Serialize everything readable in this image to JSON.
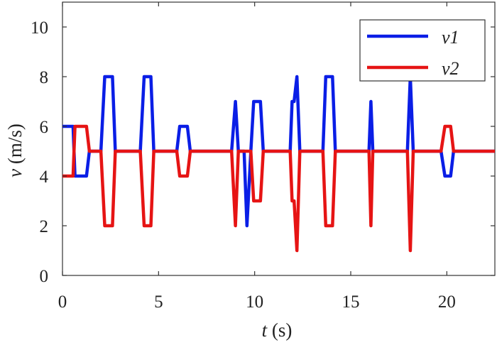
{
  "chart_data": {
    "type": "line",
    "xlabel": {
      "var": "t",
      "unit": " (s)"
    },
    "ylabel": {
      "var": "v",
      "unit": " (m/s)"
    },
    "xlim": [
      0,
      22.5
    ],
    "ylim": [
      0,
      11
    ],
    "xticks": [
      0,
      5,
      10,
      15,
      20
    ],
    "yticks": [
      0,
      2,
      4,
      6,
      8,
      10
    ],
    "grid": false,
    "legend_position": "top-right",
    "series": [
      {
        "name": "v1",
        "color": "#0a1ee6",
        "x": [
          0,
          0.55,
          0.65,
          1.25,
          1.4,
          2.0,
          2.2,
          2.6,
          2.75,
          4.05,
          4.25,
          4.6,
          4.75,
          5.95,
          6.1,
          6.5,
          6.65,
          8.8,
          9.0,
          9.15,
          9.45,
          9.6,
          9.8,
          9.95,
          10.3,
          10.45,
          11.85,
          11.95,
          12.05,
          12.2,
          12.35,
          13.55,
          13.7,
          14.05,
          14.2,
          15.95,
          16.05,
          16.15,
          17.95,
          18.1,
          18.25,
          19.7,
          19.9,
          20.2,
          20.35,
          22.5
        ],
        "y": [
          6,
          6,
          4,
          4,
          5,
          5,
          8,
          8,
          5,
          5,
          8,
          8,
          5,
          5,
          6,
          6,
          5,
          5,
          7,
          5,
          5,
          2,
          5,
          7,
          7,
          5,
          5,
          7,
          7,
          8,
          5,
          5,
          8,
          8,
          5,
          5,
          7,
          5,
          5,
          8,
          5,
          5,
          4,
          4,
          5,
          5
        ]
      },
      {
        "name": "v2",
        "color": "#e61414",
        "x": [
          0,
          0.55,
          0.65,
          1.25,
          1.4,
          2.0,
          2.2,
          2.6,
          2.75,
          4.05,
          4.25,
          4.6,
          4.75,
          5.95,
          6.1,
          6.5,
          6.65,
          8.8,
          9.0,
          9.15,
          9.45,
          9.6,
          9.8,
          9.95,
          10.3,
          10.45,
          11.85,
          11.95,
          12.05,
          12.2,
          12.35,
          13.55,
          13.7,
          14.05,
          14.2,
          15.95,
          16.05,
          16.15,
          17.95,
          18.1,
          18.25,
          19.7,
          19.9,
          20.2,
          20.35,
          22.5
        ],
        "y": [
          4,
          4,
          6,
          6,
          5,
          5,
          2,
          2,
          5,
          5,
          2,
          2,
          5,
          5,
          4,
          4,
          5,
          5,
          2,
          5,
          5,
          5,
          5,
          3,
          3,
          5,
          5,
          3,
          3,
          1,
          5,
          5,
          2,
          2,
          5,
          5,
          2,
          5,
          5,
          1,
          5,
          5,
          6,
          6,
          5,
          5
        ]
      }
    ]
  }
}
